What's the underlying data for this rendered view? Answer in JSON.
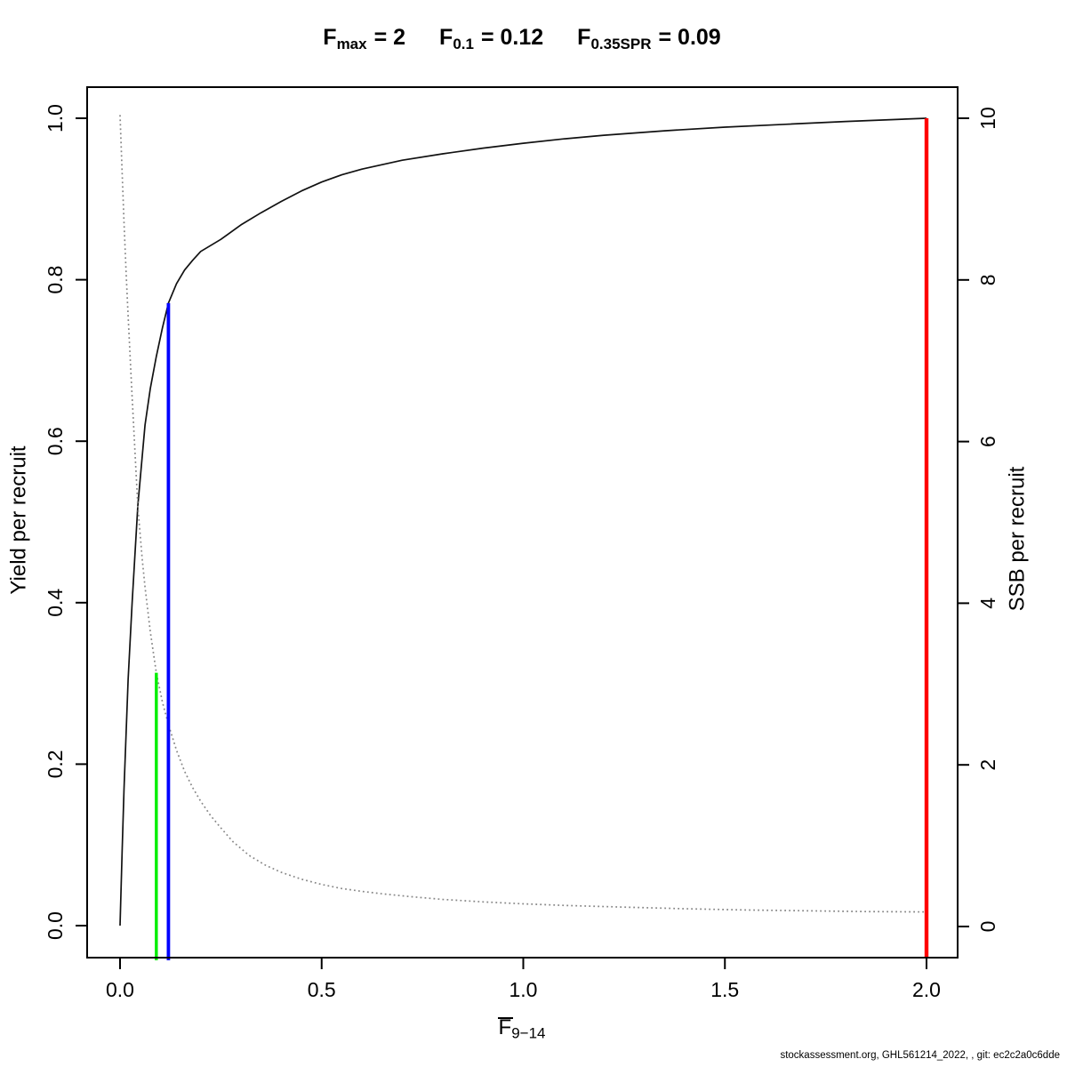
{
  "chart_data": {
    "type": "line",
    "title": "F_max = 2    F_0.1 = 0.12    F_0.35SPR = 0.09",
    "title_terms": [
      {
        "base": "F",
        "sub": "max",
        "rhs": "= 2"
      },
      {
        "base": "F",
        "sub": "0.1",
        "rhs": "= 0.12"
      },
      {
        "base": "F",
        "sub": "0.35SPR",
        "rhs": "= 0.09"
      }
    ],
    "x_axis": {
      "label_base": "F",
      "label_sub": "9−14",
      "min": 0,
      "max": 2,
      "ticks": [
        {
          "value": 0.0,
          "label": "0.0"
        },
        {
          "value": 0.5,
          "label": "0.5"
        },
        {
          "value": 1.0,
          "label": "1.0"
        },
        {
          "value": 1.5,
          "label": "1.5"
        },
        {
          "value": 2.0,
          "label": "2.0"
        }
      ]
    },
    "y_left": {
      "label": "Yield per recruit",
      "min": 0,
      "max": 1,
      "ticks": [
        {
          "value": 0.0,
          "label": "0.0"
        },
        {
          "value": 0.2,
          "label": "0.2"
        },
        {
          "value": 0.4,
          "label": "0.4"
        },
        {
          "value": 0.6,
          "label": "0.6"
        },
        {
          "value": 0.8,
          "label": "0.8"
        },
        {
          "value": 1.0,
          "label": "1.0"
        }
      ]
    },
    "y_right": {
      "label": "SSB per recruit",
      "min": 0,
      "max": 10,
      "ticks": [
        {
          "value": 0,
          "label": "0"
        },
        {
          "value": 2,
          "label": "2"
        },
        {
          "value": 4,
          "label": "4"
        },
        {
          "value": 6,
          "label": "6"
        },
        {
          "value": 8,
          "label": "8"
        },
        {
          "value": 10,
          "label": "10"
        }
      ]
    },
    "grid": false,
    "legend": "none",
    "series": [
      {
        "name": "yield-per-recruit",
        "axis": "left",
        "style": "solid",
        "color": "#111111",
        "x": [
          0,
          0.005,
          0.01,
          0.02,
          0.03,
          0.044,
          0.062,
          0.075,
          0.09,
          0.105,
          0.12,
          0.14,
          0.16,
          0.18,
          0.2,
          0.25,
          0.3,
          0.35,
          0.4,
          0.45,
          0.5,
          0.55,
          0.6,
          0.7,
          0.8,
          0.9,
          1.0,
          1.1,
          1.2,
          1.35,
          1.5,
          1.65,
          1.8,
          2.0
        ],
        "y": [
          0,
          0.09,
          0.17,
          0.305,
          0.4,
          0.52,
          0.62,
          0.665,
          0.705,
          0.74,
          0.771,
          0.795,
          0.812,
          0.824,
          0.835,
          0.85,
          0.868,
          0.883,
          0.897,
          0.91,
          0.921,
          0.93,
          0.937,
          0.948,
          0.956,
          0.963,
          0.969,
          0.9745,
          0.979,
          0.9845,
          0.989,
          0.9925,
          0.996,
          1.0
        ]
      },
      {
        "name": "ssb-per-recruit",
        "axis": "right",
        "style": "dotted",
        "color": "#878787",
        "x": [
          0,
          0.005,
          0.01,
          0.015,
          0.02,
          0.03,
          0.044,
          0.055,
          0.062,
          0.075,
          0.09,
          0.105,
          0.12,
          0.14,
          0.16,
          0.18,
          0.2,
          0.225,
          0.25,
          0.28,
          0.32,
          0.36,
          0.4,
          0.45,
          0.5,
          0.55,
          0.6,
          0.65,
          0.72,
          0.8,
          0.9,
          1.0,
          1.11,
          1.25,
          1.4,
          1.55,
          1.7,
          1.85,
          2.0
        ],
        "y": [
          10.04,
          9.35,
          8.7,
          8.1,
          7.55,
          6.55,
          5.2,
          4.55,
          4.2,
          3.65,
          3.14,
          2.78,
          2.5,
          2.18,
          1.92,
          1.72,
          1.55,
          1.37,
          1.22,
          1.05,
          0.88,
          0.76,
          0.67,
          0.585,
          0.52,
          0.47,
          0.435,
          0.405,
          0.37,
          0.335,
          0.305,
          0.28,
          0.26,
          0.24,
          0.22,
          0.205,
          0.195,
          0.185,
          0.18
        ]
      }
    ],
    "reference_lines": [
      {
        "name": "f-max-reference-line",
        "x": 2.0,
        "top": 1.0,
        "top_axis": "left",
        "color": "#ff0000",
        "width": 4.4,
        "overhang": 1
      },
      {
        "name": "f-0.1-reference-line",
        "x": 0.12,
        "top": 0.771,
        "top_axis": "left",
        "color": "#0000ff",
        "width": 3.8,
        "overhang": 3
      },
      {
        "name": "f-0.35spr-reference-line",
        "x": 0.09,
        "top": 3.14,
        "top_axis": "right",
        "color": "#00ee00",
        "width": 3.4,
        "overhang": 3
      }
    ],
    "footer": "stockassessment.org, GHL561214_2022, , git: ec2c2a0c6dde"
  }
}
